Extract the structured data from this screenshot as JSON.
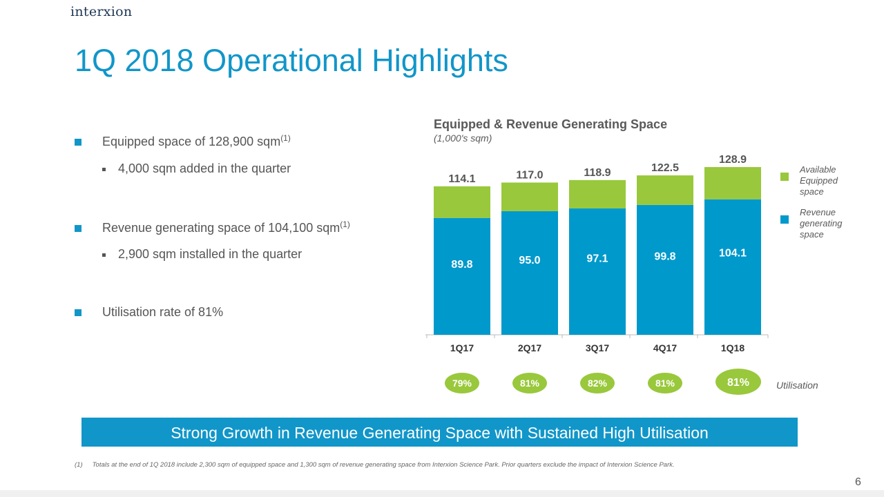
{
  "logo": "interxion",
  "title": "1Q 2018 Operational Highlights",
  "bullets": [
    {
      "text": "Equipped space of 128,900 sqm",
      "sup": "(1)"
    },
    {
      "text": "4,000 sqm added in the quarter"
    },
    {
      "text": "Revenue generating space of 104,100 sqm",
      "sup": "(1)"
    },
    {
      "text": "2,900 sqm installed in the quarter"
    },
    {
      "text": "Utilisation rate of 81%"
    }
  ],
  "chart_data": {
    "type": "bar",
    "stacked": true,
    "title": "Equipped & Revenue Generating Space",
    "subtitle": "(1,000's sqm)",
    "categories": [
      "1Q17",
      "2Q17",
      "3Q17",
      "4Q17",
      "1Q18"
    ],
    "series": [
      {
        "name": "Revenue generating space",
        "color": "#0099cc",
        "values": [
          89.8,
          95.0,
          97.1,
          99.8,
          104.1
        ]
      },
      {
        "name": "Available Equipped space",
        "color": "#99c83c",
        "values": [
          24.3,
          22.0,
          21.8,
          22.7,
          24.8
        ]
      }
    ],
    "totals": [
      "114.1",
      "117.0",
      "118.9",
      "122.5",
      "128.9"
    ],
    "revenue_labels": [
      "89.8",
      "95.0",
      "97.1",
      "99.8",
      "104.1"
    ],
    "ylim": [
      0,
      135
    ],
    "legend": [
      "Available Equipped space",
      "Revenue generating space"
    ],
    "legend_position": "right",
    "utilisation": [
      "79%",
      "81%",
      "82%",
      "81%",
      "81%"
    ],
    "utilisation_label": "Utilisation"
  },
  "legend_lines": {
    "available": [
      "Available",
      "Equipped",
      "space"
    ],
    "revenue": [
      "Revenue",
      "generating",
      "space"
    ]
  },
  "banner": "Strong Growth in Revenue Generating Space with Sustained High Utilisation",
  "footnote": {
    "marker": "(1)",
    "text": "Totals at the end of 1Q 2018 include 2,300 sqm of equipped space and 1,300 sqm of revenue generating space from Interxion Science Park. Prior quarters exclude the impact of Interxion Science Park."
  },
  "page_number": "6"
}
